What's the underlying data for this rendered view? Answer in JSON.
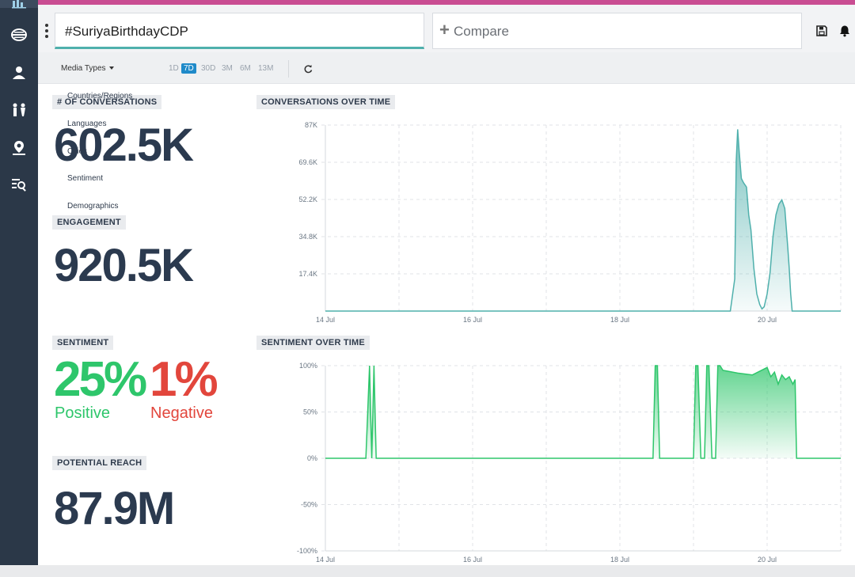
{
  "search": {
    "query": "#SuriyaBirthdayCDP"
  },
  "compare": {
    "label": "Compare"
  },
  "toolbar": {
    "save_icon": "save-icon",
    "bell_icon": "bell-icon",
    "menu_icon": "kebab-icon"
  },
  "sidebar": {
    "icons": [
      "dashboard-icon",
      "sentiment-icon",
      "influencer-icon",
      "demographics-icon",
      "location-icon",
      "search-filter-icon"
    ]
  },
  "filters": {
    "media_types": "Media Types",
    "ranges": [
      "1D",
      "7D",
      "30D",
      "3M",
      "6M",
      "13M"
    ],
    "active_range": "7D",
    "dropdown_items": [
      "Countries/Regions",
      "Languages",
      "Cities",
      "Sentiment",
      "Demographics"
    ]
  },
  "metrics": {
    "conversations": {
      "label": "# OF CONVERSATIONS",
      "value": "602.5K"
    },
    "engagement": {
      "label": "ENGAGEMENT",
      "value": "920.5K"
    },
    "sentiment": {
      "label": "SENTIMENT",
      "positive": "25%",
      "positive_label": "Positive",
      "negative": "1%",
      "negative_label": "Negative"
    },
    "reach": {
      "label": "POTENTIAL REACH",
      "value": "87.9M"
    }
  },
  "colors": {
    "teal": "#4fb0ac",
    "green": "#2ec66b",
    "red": "#e2463c",
    "sidebar": "#2b3848",
    "accent": "#c94d92"
  },
  "chart_data": [
    {
      "type": "area",
      "title": "CONVERSATIONS OVER TIME",
      "x_ticks": [
        "14 Jul",
        "16 Jul",
        "18 Jul",
        "20 Jul"
      ],
      "x_tick_days": [
        0,
        2,
        4,
        6
      ],
      "y_ticks": [
        "87K",
        "69.6K",
        "52.2K",
        "34.8K",
        "17.4K"
      ],
      "y_tick_values": [
        87000,
        69600,
        52200,
        34800,
        17400
      ],
      "ylim": [
        0,
        87000
      ],
      "xlim": [
        0,
        7
      ],
      "grid": true,
      "x": [
        0,
        5.4,
        5.5,
        5.56,
        5.58,
        5.6,
        5.62,
        5.65,
        5.68,
        5.72,
        5.75,
        5.78,
        5.82,
        5.86,
        5.9,
        5.93,
        5.96,
        6.0,
        6.04,
        6.08,
        6.12,
        6.16,
        6.2,
        6.24,
        6.28,
        6.3,
        6.32,
        6.34,
        6.37,
        6.4,
        6.45,
        7.0
      ],
      "values": [
        0,
        0,
        0,
        15000,
        70000,
        85000,
        75000,
        62000,
        60000,
        58000,
        45000,
        38000,
        20000,
        8000,
        3000,
        1000,
        2000,
        8000,
        18000,
        35000,
        45000,
        50000,
        52000,
        48000,
        30000,
        20000,
        8000,
        0,
        0,
        0,
        0,
        0
      ]
    },
    {
      "type": "area",
      "title": "SENTIMENT OVER TIME",
      "x_ticks": [
        "14 Jul",
        "16 Jul",
        "18 Jul",
        "20 Jul"
      ],
      "x_tick_days": [
        0,
        2,
        4,
        6
      ],
      "y_ticks": [
        "100%",
        "50%",
        "0%",
        "-50%",
        "-100%"
      ],
      "y_tick_values": [
        100,
        50,
        0,
        -50,
        -100
      ],
      "ylim": [
        -100,
        100
      ],
      "xlim": [
        0,
        7
      ],
      "grid": true,
      "x": [
        0,
        0.55,
        0.6,
        0.63,
        0.66,
        0.69,
        0.72,
        0.75,
        4.45,
        4.48,
        4.51,
        4.54,
        4.57,
        5.0,
        5.03,
        5.06,
        5.1,
        5.15,
        5.18,
        5.21,
        5.25,
        5.3,
        5.33,
        5.36,
        5.4,
        5.6,
        5.8,
        6.0,
        6.05,
        6.1,
        6.15,
        6.2,
        6.25,
        6.3,
        6.35,
        6.38,
        6.4,
        6.42,
        7.0
      ],
      "values": [
        0,
        0,
        100,
        0,
        100,
        0,
        0,
        0,
        0,
        100,
        100,
        0,
        0,
        0,
        100,
        100,
        0,
        0,
        100,
        100,
        0,
        0,
        100,
        100,
        95,
        92,
        90,
        98,
        88,
        93,
        80,
        90,
        85,
        88,
        80,
        85,
        0,
        0,
        0
      ]
    }
  ]
}
